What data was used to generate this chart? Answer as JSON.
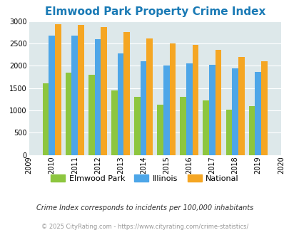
{
  "title": "Elmwood Park Property Crime Index",
  "years": [
    2009,
    2010,
    2011,
    2012,
    2013,
    2014,
    2015,
    2016,
    2017,
    2018,
    2019,
    2020
  ],
  "elmwood_park": [
    null,
    1600,
    1850,
    1800,
    1450,
    1300,
    1130,
    1310,
    1220,
    1020,
    1100,
    null
  ],
  "illinois": [
    null,
    2680,
    2680,
    2590,
    2280,
    2100,
    2000,
    2060,
    2020,
    1950,
    1860,
    null
  ],
  "national": [
    null,
    2930,
    2910,
    2860,
    2760,
    2610,
    2500,
    2470,
    2360,
    2200,
    2100,
    null
  ],
  "bar_colors": {
    "elmwood_park": "#8dc63f",
    "illinois": "#4da6e8",
    "national": "#f5a623"
  },
  "ylim": [
    0,
    3000
  ],
  "yticks": [
    0,
    500,
    1000,
    1500,
    2000,
    2500,
    3000
  ],
  "background_color": "#dde8ea",
  "grid_color": "#ffffff",
  "title_color": "#1a7ab5",
  "title_fontsize": 11,
  "legend_labels": [
    "Elmwood Park",
    "Illinois",
    "National"
  ],
  "footnote1": "Crime Index corresponds to incidents per 100,000 inhabitants",
  "footnote2": "© 2025 CityRating.com - https://www.cityrating.com/crime-statistics/",
  "bar_width": 0.27
}
